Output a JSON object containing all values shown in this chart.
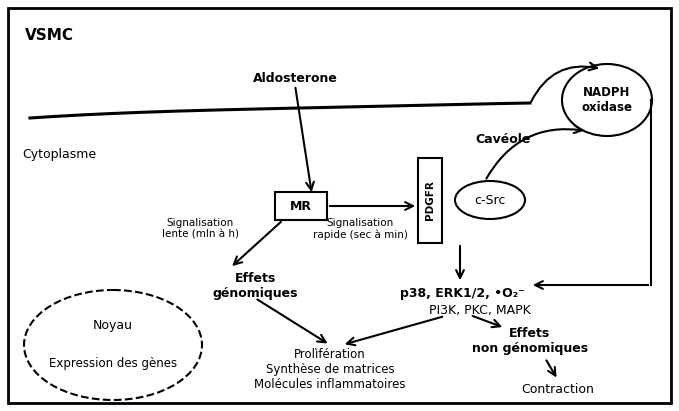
{
  "figsize": [
    6.79,
    4.11
  ],
  "dpi": 100,
  "bg_color": "#ffffff",
  "title_vsmc": "VSMC",
  "label_cytoplasme": "Cytoplasme",
  "label_aldosterone": "Aldosterone",
  "label_caveole": "Cavéole",
  "label_nadph": "NADPH\noxidase",
  "label_mr": "MR",
  "label_pdgfr": "PDGFR",
  "label_csrc": "c-Src",
  "label_sig_lente": "Signalisation\nlente (mln à h)",
  "label_sig_rapide": "Signalisation\nrapide (sec à min)",
  "label_effets_gen": "Effets\ngénomiques",
  "label_noyau": "Noyau",
  "label_expr": "Expression des gènes",
  "label_p38": "p38, ERK1/2, •O₂⁻",
  "label_pi3k": "PI3K, PKC, MAPK",
  "label_effets_non": "Effets\nnon génomiques",
  "label_prolif": "Prolìfération\nSynthèse de matrices\nMolécules inflammatoires",
  "label_contraction": "Contraction"
}
